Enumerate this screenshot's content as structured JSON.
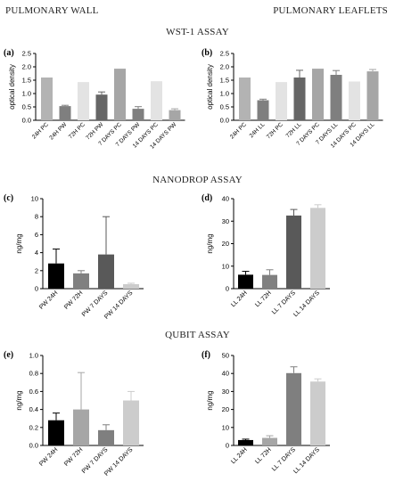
{
  "headers": {
    "left_top": "PULMONARY WALL",
    "right_top": "PULMONARY LEAFLETS",
    "section1": "WST-1 ASSAY",
    "section2": "NANODROP ASSAY",
    "section3": "QUBIT ASSAY"
  },
  "chart_data": [
    {
      "panel": "(a)",
      "type": "bar",
      "ylabel": "optical density",
      "ylim": [
        0,
        2.5
      ],
      "yticks": [
        "0.0",
        "0.5",
        "1.0",
        "1.5",
        "2.0",
        "2.5"
      ],
      "categories": [
        "24H PC",
        "24H PW",
        "72H PC",
        "72H PW",
        "7 DAYS PC",
        "7 DAYS PW",
        "14 DAYS PC",
        "14 DAYS PW"
      ],
      "values": [
        1.6,
        0.53,
        1.43,
        0.96,
        1.93,
        0.43,
        1.46,
        0.38
      ],
      "errors": [
        0,
        0.03,
        0,
        0.1,
        0,
        0.08,
        0,
        0.05
      ],
      "colors": [
        "#b3b3b3",
        "#7f7f7f",
        "#e3e3e3",
        "#666666",
        "#a6a6a6",
        "#7f7f7f",
        "#e3e3e3",
        "#a6a6a6"
      ]
    },
    {
      "panel": "(b)",
      "type": "bar",
      "ylabel": "optical density",
      "ylim": [
        0,
        2.5
      ],
      "yticks": [
        "0.0",
        "0.5",
        "1.0",
        "1.5",
        "2.0",
        "2.5"
      ],
      "categories": [
        "24H PC",
        "24H LL",
        "72H PC",
        "72H LL",
        "7 DAYS PC",
        "7 DAYS LL",
        "14 DAYS PC",
        "14 DAYS LL"
      ],
      "values": [
        1.6,
        0.75,
        1.43,
        1.6,
        1.93,
        1.7,
        1.45,
        1.83
      ],
      "errors": [
        0,
        0.04,
        0,
        0.27,
        0,
        0.16,
        0,
        0.07
      ],
      "colors": [
        "#b3b3b3",
        "#7f7f7f",
        "#e3e3e3",
        "#666666",
        "#a6a6a6",
        "#7f7f7f",
        "#e3e3e3",
        "#a6a6a6"
      ]
    },
    {
      "panel": "(c)",
      "type": "bar",
      "ylabel": "ng/mg",
      "ylim": [
        0,
        10
      ],
      "yticks": [
        "0",
        "2",
        "4",
        "6",
        "8",
        "10"
      ],
      "categories": [
        "PW 24H",
        "PW 72H",
        "PW 7 DAYS",
        "PW 14 DAYS"
      ],
      "values": [
        2.8,
        1.7,
        3.8,
        0.5
      ],
      "errors": [
        1.6,
        0.3,
        4.2,
        0.1
      ],
      "colors": [
        "#000000",
        "#808080",
        "#595959",
        "#cccccc"
      ]
    },
    {
      "panel": "(d)",
      "type": "bar",
      "ylabel": "ng/mg",
      "ylim": [
        0,
        40
      ],
      "yticks": [
        "0",
        "10",
        "20",
        "30",
        "40"
      ],
      "categories": [
        "LL 24H",
        "LL 72H",
        "LL 7 DAYS",
        "LL 14 DAYS"
      ],
      "values": [
        6.2,
        6.1,
        32.5,
        35.9
      ],
      "errors": [
        1.5,
        2.3,
        2.7,
        1.4
      ],
      "colors": [
        "#000000",
        "#808080",
        "#595959",
        "#cccccc"
      ]
    },
    {
      "panel": "(e)",
      "type": "bar",
      "ylabel": "ng/mg",
      "ylim": [
        0,
        1.0
      ],
      "yticks": [
        "0.0",
        "0.2",
        "0.4",
        "0.6",
        "0.8",
        "1.0"
      ],
      "categories": [
        "PW 24H",
        "PW 72H",
        "PW 7 DAYS",
        "PW 14 DAYS"
      ],
      "values": [
        0.28,
        0.4,
        0.17,
        0.5
      ],
      "errors": [
        0.08,
        0.41,
        0.06,
        0.1
      ],
      "colors": [
        "#000000",
        "#a6a6a6",
        "#7f7f7f",
        "#cccccc"
      ]
    },
    {
      "panel": "(f)",
      "type": "bar",
      "ylabel": "ng/mg",
      "ylim": [
        0,
        50
      ],
      "yticks": [
        "0",
        "10",
        "20",
        "30",
        "40",
        "50"
      ],
      "categories": [
        "LL 24H",
        "LL 72H",
        "LL 7 DAYS",
        "LL 14 DAYS"
      ],
      "values": [
        3,
        4.2,
        40.2,
        35.5
      ],
      "errors": [
        0.5,
        1.2,
        3.5,
        1.5
      ],
      "colors": [
        "#000000",
        "#a6a6a6",
        "#7f7f7f",
        "#cccccc"
      ]
    }
  ]
}
